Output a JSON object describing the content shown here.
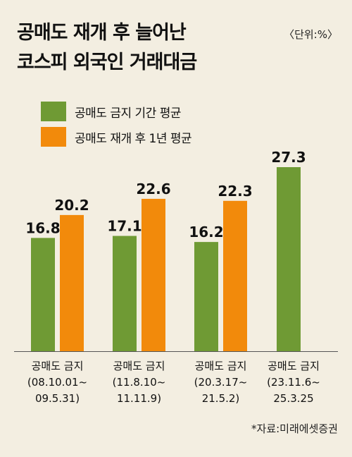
{
  "header": {
    "title_line1": "공매도 재개 후 늘어난",
    "title_line2": "코스피 외국인 거래대금",
    "unit": "〈단위:%〉"
  },
  "footer": {
    "source": "*자료:미래에셋증권"
  },
  "colors": {
    "ban": "#6f9a34",
    "resume": "#f28a0b",
    "background": "#f3eee1"
  },
  "chart_data": {
    "type": "bar",
    "categories": [
      [
        "공매도 금지",
        "(08.10.01~",
        "09.5.31)"
      ],
      [
        "공매도 금지",
        "(11.8.10~",
        "11.11.9)"
      ],
      [
        "공매도 금지",
        "(20.3.17~",
        "21.5.2)"
      ],
      [
        "공매도 금지",
        "(23.11.6~",
        "25.3.25"
      ]
    ],
    "series": [
      {
        "name": "공매도 금지 기간 평균",
        "values": [
          16.8,
          17.1,
          16.2,
          27.3
        ]
      },
      {
        "name": "공매도 재개 후 1년 평균",
        "values": [
          20.2,
          22.6,
          22.3,
          null
        ]
      }
    ],
    "title": "공매도 재개 후 늘어난 코스피 외국인 거래대금",
    "ylim": [
      0,
      27.3
    ],
    "legend": "top-left",
    "grid": false
  }
}
